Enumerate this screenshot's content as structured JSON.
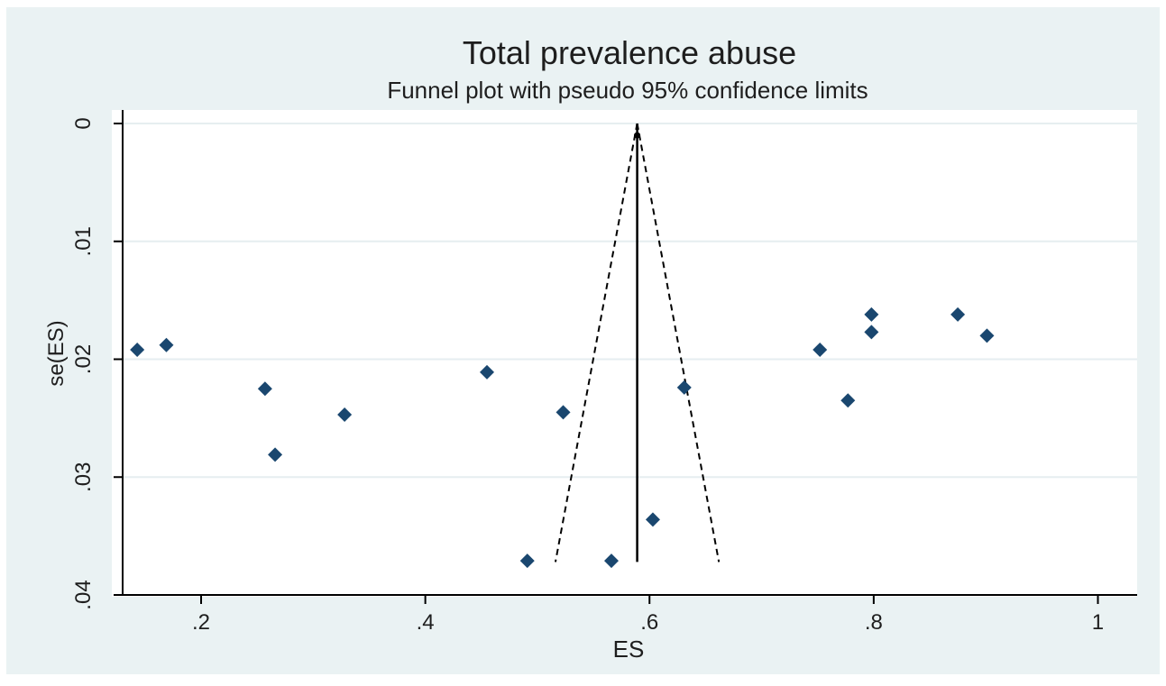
{
  "chart_data": {
    "type": "scatter",
    "title": "Total prevalence abuse",
    "subtitle": "Funnel plot with pseudo 95% confidence limits",
    "xlabel": "ES",
    "ylabel": "se(ES)",
    "xlim": [
      0.13,
      1.035
    ],
    "ylim": [
      0,
      0.04
    ],
    "y_reversed": true,
    "x_ticks": [
      {
        "value": 0.2,
        "label": ".2"
      },
      {
        "value": 0.4,
        "label": ".4"
      },
      {
        "value": 0.6,
        "label": ".6"
      },
      {
        "value": 0.8,
        "label": ".8"
      },
      {
        "value": 1.0,
        "label": "1"
      }
    ],
    "y_ticks": [
      {
        "value": 0,
        "label": "0"
      },
      {
        "value": 0.01,
        "label": ".01"
      },
      {
        "value": 0.02,
        "label": ".02"
      },
      {
        "value": 0.03,
        "label": ".03"
      },
      {
        "value": 0.04,
        "label": ".04"
      }
    ],
    "grid": true,
    "pooled_estimate": 0.589,
    "funnel_max_se": 0.0372,
    "points": [
      {
        "x": 0.143,
        "y": 0.0192
      },
      {
        "x": 0.169,
        "y": 0.0188
      },
      {
        "x": 0.257,
        "y": 0.0225
      },
      {
        "x": 0.266,
        "y": 0.0281
      },
      {
        "x": 0.328,
        "y": 0.0247
      },
      {
        "x": 0.455,
        "y": 0.0211
      },
      {
        "x": 0.491,
        "y": 0.0371
      },
      {
        "x": 0.523,
        "y": 0.0245
      },
      {
        "x": 0.566,
        "y": 0.0371
      },
      {
        "x": 0.603,
        "y": 0.0336
      },
      {
        "x": 0.631,
        "y": 0.0224
      },
      {
        "x": 0.752,
        "y": 0.0192
      },
      {
        "x": 0.777,
        "y": 0.0235
      },
      {
        "x": 0.798,
        "y": 0.0162
      },
      {
        "x": 0.798,
        "y": 0.0177
      },
      {
        "x": 0.875,
        "y": 0.0162
      },
      {
        "x": 0.901,
        "y": 0.018
      }
    ],
    "colors": {
      "outer_bg": "#eaf2f3",
      "plot_bg": "#ffffff",
      "grid": "#e6eef0",
      "marker": "#1a476f",
      "text": "#1e1e1e",
      "axis": "#000000"
    }
  }
}
